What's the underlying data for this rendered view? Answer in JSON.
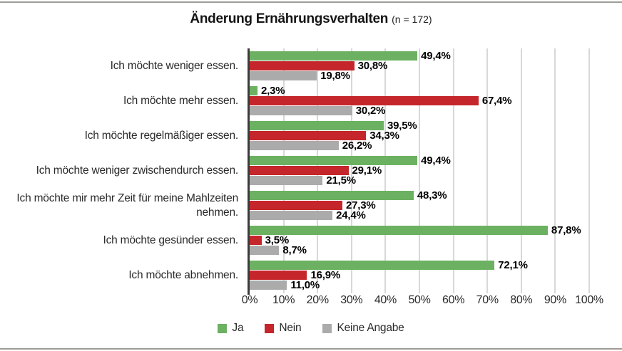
{
  "title": {
    "main": "Änderung Ernährungsverhalten",
    "sample": "(n = 172)"
  },
  "colors": {
    "ja_green": "#6cb161",
    "nein_red": "#c4262b",
    "keine_angabe_gray": "#ababab",
    "axis": "#3b3b3b",
    "gridline": "#d8d8d8",
    "frame_rule": "#9d9d95"
  },
  "chart_data": {
    "type": "bar",
    "orientation": "horizontal",
    "title": "Änderung Ernährungsverhalten (n = 172)",
    "xlim": [
      0,
      100
    ],
    "grid": true,
    "legend_position": "bottom",
    "categories": [
      "Ich möchte weniger essen.",
      "Ich möchte mehr essen.",
      "Ich möchte regelmäßiger essen.",
      "Ich möchte weniger zwischendurch essen.",
      "Ich möchte mir mehr Zeit für meine Mahlzeiten nehmen.",
      "Ich möchte gesünder essen.",
      "Ich möchte abnehmen."
    ],
    "series": [
      {
        "name": "Ja",
        "color": "#6cb161",
        "values": [
          49.4,
          2.3,
          39.5,
          49.4,
          48.3,
          87.8,
          72.1
        ],
        "labels": [
          "49,4%",
          "2,3%",
          "39,5%",
          "49,4%",
          "48,3%",
          "87,8%",
          "72,1%"
        ]
      },
      {
        "name": "Nein",
        "color": "#c4262b",
        "values": [
          30.8,
          67.4,
          34.3,
          29.1,
          27.3,
          3.5,
          16.9
        ],
        "labels": [
          "30,8%",
          "67,4%",
          "34,3%",
          "29,1%",
          "27,3%",
          "3,5%",
          "16,9%"
        ]
      },
      {
        "name": "Keine Angabe",
        "color": "#ababab",
        "values": [
          19.8,
          30.2,
          26.2,
          21.5,
          24.4,
          8.7,
          11.0
        ],
        "labels": [
          "19,8%",
          "30,2%",
          "26,2%",
          "21,5%",
          "24,4%",
          "8,7%",
          "11,0%"
        ]
      }
    ],
    "x_ticks": [
      "0%",
      "10%",
      "20%",
      "30%",
      "40%",
      "50%",
      "60%",
      "70%",
      "80%",
      "90%",
      "100%"
    ]
  }
}
